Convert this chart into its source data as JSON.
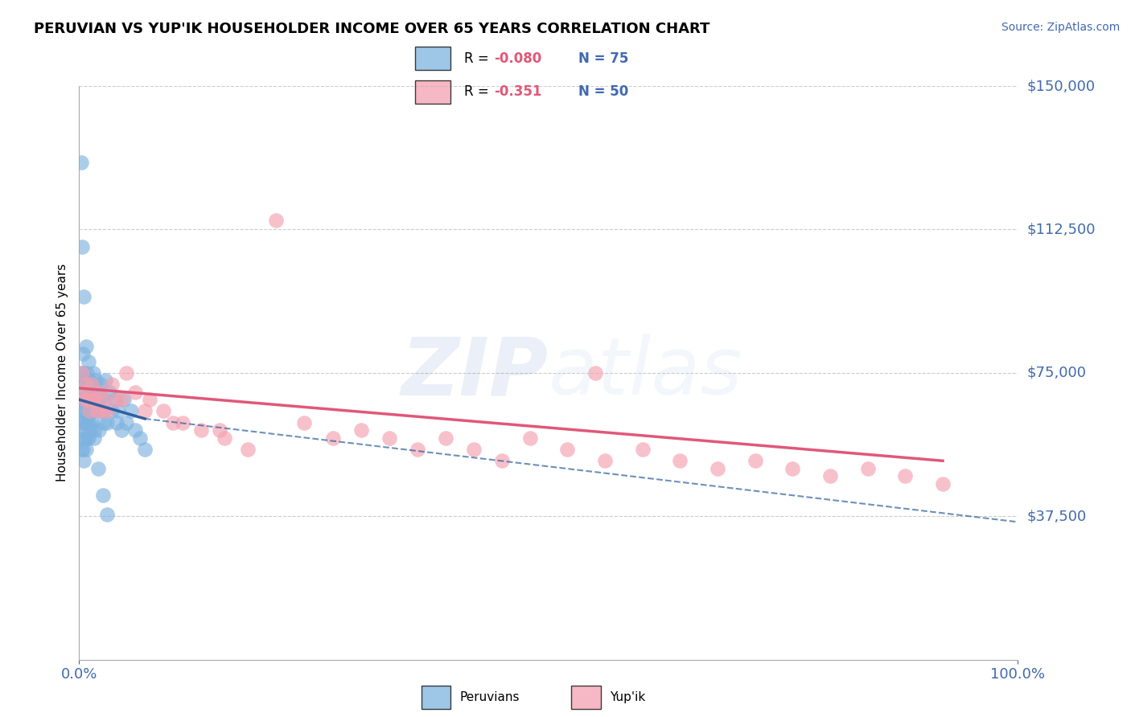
{
  "title": "PERUVIAN VS YUP'IK HOUSEHOLDER INCOME OVER 65 YEARS CORRELATION CHART",
  "source": "Source: ZipAtlas.com",
  "ylabel": "Householder Income Over 65 years",
  "xlim": [
    0,
    1.0
  ],
  "ylim": [
    0,
    150000
  ],
  "yticks": [
    0,
    37500,
    75000,
    112500,
    150000
  ],
  "ytick_labels": [
    "",
    "$37,500",
    "$75,000",
    "$112,500",
    "$150,000"
  ],
  "xtick_labels": [
    "0.0%",
    "100.0%"
  ],
  "peruvian_color": "#7eb3e0",
  "yupik_color": "#f4a0b0",
  "peruvian_line_color": "#3060a0",
  "yupik_line_color": "#e05878",
  "peruvian_R": -0.08,
  "peruvian_N": 75,
  "yupik_R": -0.351,
  "yupik_N": 50,
  "grid_color": "#cccccc",
  "peruvian_x": [
    0.001,
    0.001,
    0.002,
    0.002,
    0.002,
    0.003,
    0.003,
    0.003,
    0.004,
    0.004,
    0.004,
    0.004,
    0.005,
    0.005,
    0.005,
    0.005,
    0.006,
    0.006,
    0.006,
    0.007,
    0.007,
    0.007,
    0.008,
    0.008,
    0.008,
    0.009,
    0.009,
    0.01,
    0.01,
    0.01,
    0.011,
    0.011,
    0.012,
    0.012,
    0.013,
    0.013,
    0.014,
    0.015,
    0.015,
    0.016,
    0.016,
    0.017,
    0.018,
    0.019,
    0.02,
    0.021,
    0.022,
    0.023,
    0.025,
    0.026,
    0.027,
    0.028,
    0.03,
    0.032,
    0.035,
    0.038,
    0.04,
    0.042,
    0.045,
    0.048,
    0.05,
    0.055,
    0.06,
    0.065,
    0.07,
    0.002,
    0.003,
    0.005,
    0.007,
    0.009,
    0.012,
    0.016,
    0.02,
    0.025,
    0.03
  ],
  "peruvian_y": [
    68000,
    62000,
    75000,
    65000,
    55000,
    72000,
    68000,
    58000,
    80000,
    65000,
    62000,
    55000,
    75000,
    68000,
    60000,
    52000,
    73000,
    65000,
    58000,
    70000,
    62000,
    55000,
    75000,
    68000,
    58000,
    72000,
    62000,
    78000,
    68000,
    58000,
    73000,
    62000,
    70000,
    60000,
    72000,
    62000,
    68000,
    75000,
    65000,
    72000,
    60000,
    68000,
    73000,
    65000,
    70000,
    60000,
    68000,
    72000,
    65000,
    62000,
    68000,
    73000,
    62000,
    70000,
    65000,
    68000,
    62000,
    65000,
    60000,
    68000,
    62000,
    65000,
    60000,
    58000,
    55000,
    130000,
    108000,
    95000,
    82000,
    73000,
    65000,
    58000,
    50000,
    43000,
    38000
  ],
  "yupik_x": [
    0.003,
    0.005,
    0.007,
    0.009,
    0.011,
    0.013,
    0.016,
    0.019,
    0.022,
    0.026,
    0.03,
    0.035,
    0.04,
    0.05,
    0.06,
    0.075,
    0.09,
    0.11,
    0.13,
    0.155,
    0.18,
    0.21,
    0.24,
    0.27,
    0.3,
    0.33,
    0.36,
    0.39,
    0.42,
    0.45,
    0.48,
    0.52,
    0.56,
    0.6,
    0.64,
    0.68,
    0.72,
    0.76,
    0.8,
    0.84,
    0.88,
    0.92,
    0.006,
    0.015,
    0.025,
    0.045,
    0.07,
    0.1,
    0.15,
    0.55
  ],
  "yupik_y": [
    75000,
    70000,
    72000,
    68000,
    65000,
    72000,
    68000,
    65000,
    70000,
    68000,
    65000,
    72000,
    68000,
    75000,
    70000,
    68000,
    65000,
    62000,
    60000,
    58000,
    55000,
    115000,
    62000,
    58000,
    60000,
    58000,
    55000,
    58000,
    55000,
    52000,
    58000,
    55000,
    52000,
    55000,
    52000,
    50000,
    52000,
    50000,
    48000,
    50000,
    48000,
    46000,
    68000,
    68000,
    65000,
    68000,
    65000,
    62000,
    60000,
    75000
  ]
}
